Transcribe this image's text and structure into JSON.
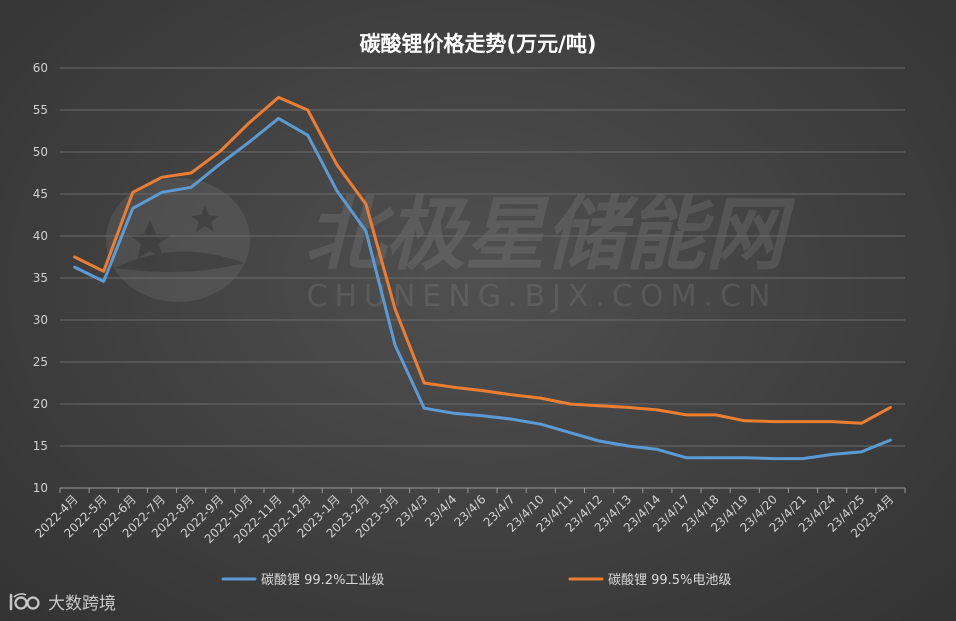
{
  "chart_data": {
    "type": "line",
    "title": "碳酸锂价格走势(万元/吨)",
    "xlabel": "",
    "ylabel": "",
    "ylim": [
      10,
      60
    ],
    "yticks": [
      10,
      15,
      20,
      25,
      30,
      35,
      40,
      45,
      50,
      55,
      60
    ],
    "grid": true,
    "legend_position": "bottom",
    "categories": [
      "2022-4月",
      "2022-5月",
      "2022-6月",
      "2022-7月",
      "2022-8月",
      "2022-9月",
      "2022-10月",
      "2022-11月",
      "2022-12月",
      "2023-1月",
      "2023-2月",
      "2023-3月",
      "23/4/3",
      "23/4/4",
      "23/4/6",
      "23/4/7",
      "23/4/10",
      "23/4/11",
      "23/4/12",
      "23/4/13",
      "23/4/14",
      "23/4/17",
      "23/4/18",
      "23/4/19",
      "23/4/20",
      "23/4/21",
      "23/4/24",
      "23/4/25",
      "2023-4月"
    ],
    "series": [
      {
        "name": "碳酸锂 99.2%工业级",
        "color": "#5b9bd5",
        "values": [
          36.3,
          34.6,
          43.3,
          45.2,
          45.8,
          48.6,
          51.2,
          54.0,
          52.0,
          45.4,
          40.6,
          27.0,
          19.5,
          18.9,
          18.6,
          18.2,
          17.6,
          16.6,
          15.6,
          15.0,
          14.6,
          13.6,
          13.6,
          13.6,
          13.5,
          13.5,
          14.0,
          14.3,
          15.7
        ]
      },
      {
        "name": "碳酸锂 99.5%电池级",
        "color": "#ed7d31",
        "values": [
          37.5,
          35.8,
          45.2,
          47.0,
          47.5,
          50.1,
          53.5,
          56.5,
          55.0,
          48.5,
          43.8,
          31.3,
          22.5,
          22.0,
          21.6,
          21.1,
          20.7,
          20.0,
          19.8,
          19.6,
          19.3,
          18.7,
          18.7,
          18.0,
          17.9,
          17.9,
          17.9,
          17.7,
          19.6
        ]
      }
    ]
  },
  "watermark": {
    "main": "北极星储能网",
    "sub": "CHUNENG.BJX.COM.CN",
    "icon": "star-logo-icon"
  },
  "brand": {
    "label": "大数跨境",
    "icon": "brand-logo-icon"
  }
}
